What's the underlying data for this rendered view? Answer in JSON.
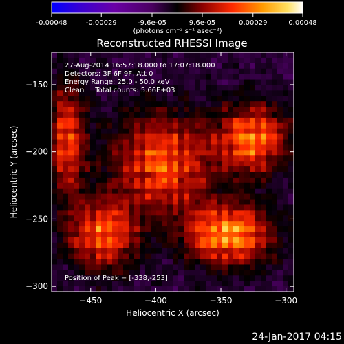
{
  "colorbar": {
    "tick_labels": [
      "-0.00048",
      "-0.00029",
      "-9.6e-05",
      "9.6e-05",
      "0.00029",
      "0.00048"
    ],
    "tick_values": [
      -0.00048,
      -0.00029,
      -9.6e-05,
      9.6e-05,
      0.00029,
      0.00048
    ],
    "range": [
      -0.00048,
      0.00048
    ],
    "unit_label": "(photons cm⁻² s⁻¹ asec⁻²)",
    "colormap": [
      "#0000ff",
      "#3b00d0",
      "#6a00a6",
      "#4a0060",
      "#000000",
      "#8a0000",
      "#ff2a00",
      "#ff9a00",
      "#ffe060",
      "#ffffff"
    ]
  },
  "chart_data": {
    "type": "heatmap",
    "title": "Reconstructed RHESSI Image",
    "xlabel": "Heliocentric X (arcsec)",
    "ylabel": "Heliocentric Y (arcsec)",
    "xlim": [
      -480,
      -294
    ],
    "ylim": [
      -304,
      -126
    ],
    "xticks": [
      -450,
      -400,
      -350,
      -300
    ],
    "yticks": [
      -150,
      -200,
      -250,
      -300
    ],
    "xtick_labels": [
      "−450",
      "−400",
      "−350",
      "−300"
    ],
    "ytick_labels": [
      "−150",
      "−200",
      "−250",
      "−300"
    ],
    "annotations": [
      "27-Aug-2014 16:57:18.000 to 17:07:18.000",
      "Detectors: 3F 6F 9F, Att 0",
      "Energy Range: 25.0 - 50.0 keV",
      "Clean     Total counts: 5.66E+03"
    ],
    "peak_label": "Position of Peak = [-338,-253]",
    "peak_position": [
      -338,
      -253
    ],
    "grid": false
  },
  "footer": {
    "timestamp": "24-Jan-2017 04:15"
  }
}
